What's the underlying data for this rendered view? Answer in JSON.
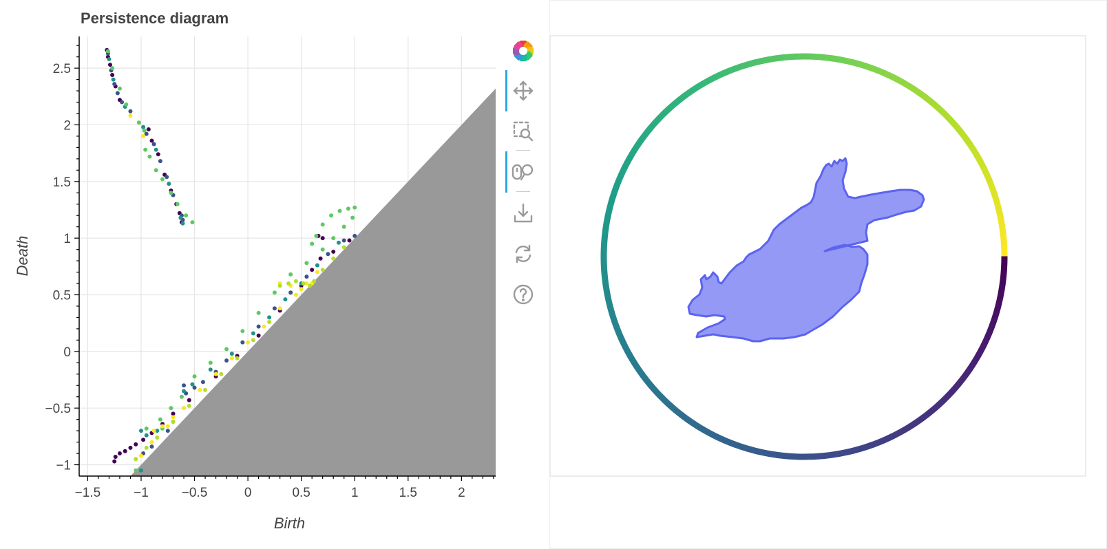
{
  "chart_data": [
    {
      "type": "scatter",
      "title": "Persistence diagram",
      "xlabel": "Birth",
      "ylabel": "Death",
      "xlim": [
        -1.58,
        2.32
      ],
      "ylim": [
        -1.1,
        2.78
      ],
      "xticks": [
        -1.5,
        -1,
        -0.5,
        0,
        0.5,
        1,
        1.5,
        2
      ],
      "xtick_labels": [
        "−1.5",
        "−1",
        "−0.5",
        "0",
        "0.5",
        "1",
        "1.5",
        "2"
      ],
      "yticks": [
        -1,
        -0.5,
        0,
        0.5,
        1,
        1.5,
        2,
        2.5
      ],
      "ytick_labels": [
        "−1",
        "−0.5",
        "0",
        "0.5",
        "1",
        "1.5",
        "2",
        "2.5"
      ],
      "grid": true,
      "diagonal_region": "below y = x, shaded gray",
      "series": [
        {
          "color": "#440154",
          "points": [
            [
              -1.32,
              2.66
            ],
            [
              -1.31,
              2.6
            ],
            [
              -1.29,
              2.53
            ],
            [
              -1.27,
              2.44
            ],
            [
              -1.24,
              2.34
            ],
            [
              -1.2,
              2.22
            ],
            [
              -0.93,
              1.96
            ],
            [
              -0.9,
              1.86
            ],
            [
              -0.84,
              1.74
            ],
            [
              -0.78,
              1.56
            ],
            [
              -0.72,
              1.42
            ],
            [
              -0.67,
              1.3
            ],
            [
              -0.64,
              1.22
            ],
            [
              -0.62,
              1.14
            ],
            [
              -1.25,
              -0.97
            ],
            [
              -1.24,
              -0.93
            ],
            [
              -1.2,
              -0.9
            ],
            [
              -1.15,
              -0.88
            ],
            [
              -1.1,
              -0.85
            ],
            [
              -1.05,
              -0.82
            ],
            [
              -0.98,
              -0.78
            ],
            [
              -0.9,
              -0.72
            ],
            [
              -0.8,
              -0.64
            ],
            [
              -0.7,
              -0.55
            ],
            [
              -0.55,
              -0.43
            ],
            [
              -0.3,
              -0.22
            ],
            [
              -0.1,
              -0.04
            ],
            [
              0.1,
              0.14
            ],
            [
              0.3,
              0.36
            ],
            [
              0.5,
              0.58
            ],
            [
              0.6,
              0.72
            ],
            [
              0.68,
              0.82
            ],
            [
              0.7,
              1.0
            ],
            [
              0.66,
              1.02
            ],
            [
              0.8,
              0.88
            ],
            [
              0.95,
              0.98
            ]
          ]
        },
        {
          "color": "#3b528b",
          "points": [
            [
              -1.31,
              2.63
            ],
            [
              -1.28,
              2.48
            ],
            [
              -1.25,
              2.36
            ],
            [
              -1.22,
              2.28
            ],
            [
              -1.18,
              2.2
            ],
            [
              -1.1,
              2.12
            ],
            [
              -0.95,
              1.92
            ],
            [
              -0.88,
              1.83
            ],
            [
              -0.82,
              1.68
            ],
            [
              -0.76,
              1.54
            ],
            [
              -0.7,
              1.38
            ],
            [
              -0.62,
              1.2
            ],
            [
              -0.61,
              1.16
            ],
            [
              -0.6,
              -0.3
            ],
            [
              -0.58,
              -0.37
            ],
            [
              -0.5,
              -0.32
            ],
            [
              -0.42,
              -0.27
            ],
            [
              -0.3,
              -0.18
            ],
            [
              -0.2,
              -0.08
            ],
            [
              -0.05,
              0.08
            ],
            [
              0.1,
              0.22
            ],
            [
              0.25,
              0.38
            ],
            [
              0.4,
              0.52
            ],
            [
              0.55,
              0.66
            ],
            [
              0.75,
              0.86
            ],
            [
              0.9,
              0.98
            ],
            [
              1.0,
              1.02
            ],
            [
              -0.98,
              -0.9
            ],
            [
              -0.9,
              -0.84
            ],
            [
              -0.75,
              -0.7
            ]
          ]
        },
        {
          "color": "#21918c",
          "points": [
            [
              -1.3,
              2.58
            ],
            [
              -1.26,
              2.4
            ],
            [
              -1.15,
              2.16
            ],
            [
              -0.98,
              1.98
            ],
            [
              -0.86,
              1.78
            ],
            [
              -0.74,
              1.48
            ],
            [
              -0.63,
              1.18
            ],
            [
              -0.61,
              1.13
            ],
            [
              -0.6,
              -0.35
            ],
            [
              -0.52,
              -0.29
            ],
            [
              -0.35,
              -0.16
            ],
            [
              -0.15,
              -0.02
            ],
            [
              0.05,
              0.16
            ],
            [
              0.2,
              0.3
            ],
            [
              0.35,
              0.46
            ],
            [
              0.5,
              0.6
            ],
            [
              0.65,
              0.76
            ],
            [
              0.85,
              0.96
            ],
            [
              -1.0,
              -0.7
            ],
            [
              -0.95,
              -0.74
            ],
            [
              -0.85,
              -0.7
            ],
            [
              -0.7,
              -0.62
            ],
            [
              -1.0,
              -1.05
            ]
          ]
        },
        {
          "color": "#5ec962",
          "points": [
            [
              -1.31,
              2.65
            ],
            [
              -1.27,
              2.5
            ],
            [
              -1.2,
              2.32
            ],
            [
              -1.14,
              2.18
            ],
            [
              -1.02,
              2.02
            ],
            [
              -0.97,
              1.95
            ],
            [
              -0.96,
              1.78
            ],
            [
              -0.92,
              1.72
            ],
            [
              -0.86,
              1.6
            ],
            [
              -0.8,
              1.52
            ],
            [
              -0.72,
              1.4
            ],
            [
              -0.66,
              1.3
            ],
            [
              -0.58,
              1.2
            ],
            [
              -0.52,
              1.14
            ],
            [
              0.6,
              0.95
            ],
            [
              0.64,
              1.02
            ],
            [
              0.7,
              1.12
            ],
            [
              0.78,
              1.2
            ],
            [
              0.86,
              1.24
            ],
            [
              0.94,
              1.26
            ],
            [
              1.0,
              1.27
            ],
            [
              0.98,
              1.18
            ],
            [
              0.9,
              1.1
            ],
            [
              0.8,
              1.0
            ],
            [
              0.7,
              0.9
            ],
            [
              0.55,
              0.78
            ],
            [
              0.4,
              0.68
            ],
            [
              0.25,
              0.52
            ],
            [
              0.1,
              0.34
            ],
            [
              -0.05,
              0.18
            ],
            [
              -0.2,
              0.02
            ],
            [
              -0.35,
              -0.1
            ],
            [
              -0.5,
              -0.22
            ],
            [
              -0.62,
              -0.4
            ],
            [
              -0.72,
              -0.5
            ],
            [
              -0.82,
              -0.6
            ],
            [
              -0.95,
              -0.68
            ],
            [
              -0.8,
              -0.68
            ],
            [
              -0.6,
              -0.5
            ],
            [
              -1.05,
              -1.05
            ]
          ]
        },
        {
          "color": "#fde725",
          "points": [
            [
              -1.1,
              2.08
            ],
            [
              -0.98,
              1.9
            ],
            [
              0.3,
              0.6
            ],
            [
              0.4,
              0.58
            ],
            [
              0.5,
              0.55
            ],
            [
              0.55,
              0.6
            ],
            [
              0.65,
              0.7
            ],
            [
              0.6,
              0.6
            ],
            [
              0.45,
              0.5
            ],
            [
              0.3,
              0.38
            ],
            [
              0.15,
              0.22
            ],
            [
              0.0,
              0.08
            ],
            [
              -0.15,
              -0.06
            ],
            [
              -0.3,
              -0.2
            ],
            [
              -0.45,
              -0.34
            ],
            [
              -0.6,
              -0.5
            ],
            [
              -0.75,
              -0.66
            ],
            [
              -0.9,
              -0.8
            ],
            [
              -1.0,
              -0.92
            ],
            [
              -0.88,
              -0.7
            ],
            [
              -0.8,
              -0.66
            ],
            [
              -0.7,
              -0.58
            ]
          ]
        },
        {
          "color": "#b5de2b",
          "points": [
            [
              -1.05,
              -0.95
            ],
            [
              -0.95,
              -0.85
            ],
            [
              -0.85,
              -0.76
            ],
            [
              -0.7,
              -0.62
            ],
            [
              -0.55,
              -0.48
            ],
            [
              -0.4,
              -0.34
            ],
            [
              -0.25,
              -0.2
            ],
            [
              -0.1,
              -0.06
            ],
            [
              0.05,
              0.1
            ],
            [
              0.2,
              0.26
            ],
            [
              0.3,
              0.58
            ],
            [
              0.38,
              0.6
            ],
            [
              0.45,
              0.62
            ],
            [
              0.52,
              0.6
            ],
            [
              0.58,
              0.58
            ],
            [
              0.62,
              0.62
            ],
            [
              0.7,
              0.72
            ],
            [
              0.8,
              0.82
            ],
            [
              0.9,
              0.92
            ]
          ]
        }
      ]
    },
    {
      "type": "diagram",
      "outer_ring": "circle colored along viridis gradient",
      "shape_fill": "#9399f5",
      "shape_stroke": "#5c63ee"
    }
  ],
  "toolbar": {
    "tools": [
      {
        "name": "bokeh-logo"
      },
      {
        "name": "pan-tool",
        "active": true
      },
      {
        "name": "box-zoom-tool"
      },
      {
        "name": "wheel-zoom-tool",
        "active": true
      },
      {
        "name": "save-tool"
      },
      {
        "name": "reset-tool"
      },
      {
        "name": "help-tool"
      }
    ]
  }
}
